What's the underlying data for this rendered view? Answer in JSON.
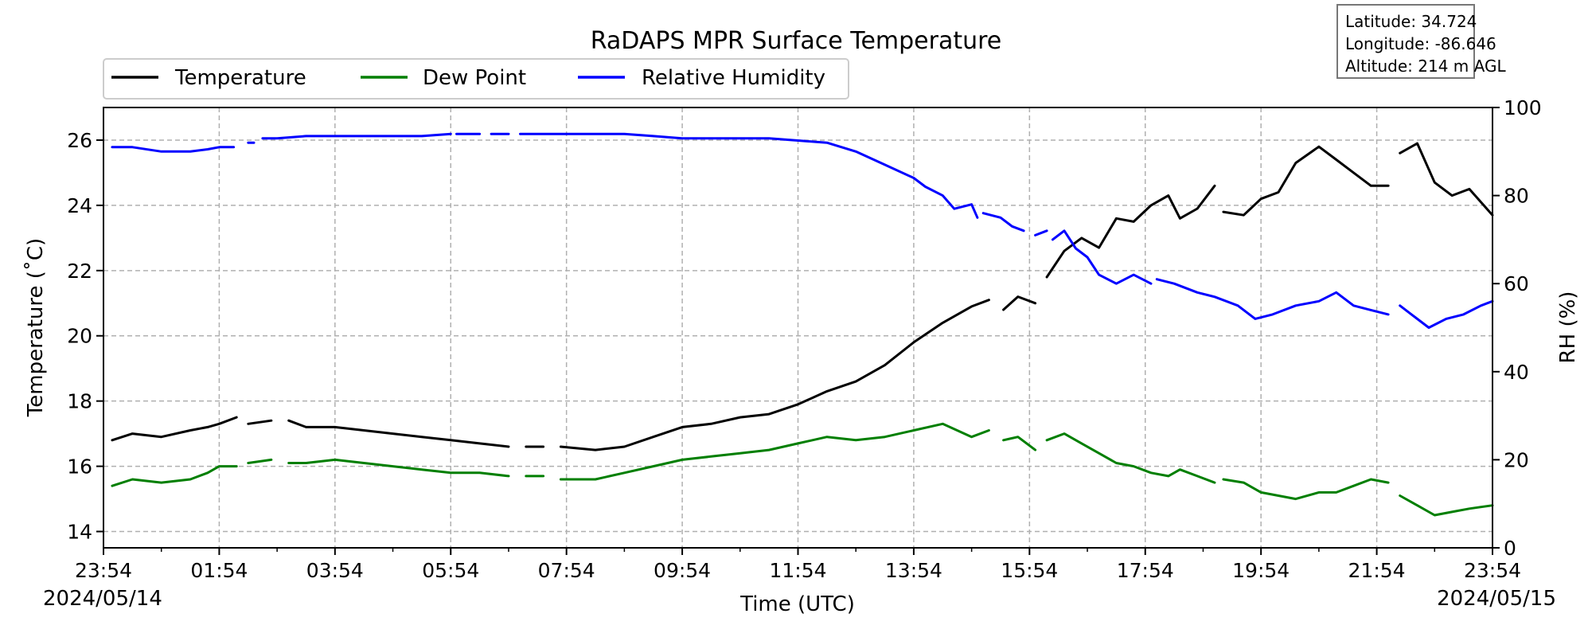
{
  "info_box": {
    "latitude": "Latitude: 34.724",
    "longitude": "Longitude: -86.646",
    "altitude": "Altitude: 214 m AGL"
  },
  "colors": {
    "temperature": "#000000",
    "dew_point": "#007f00",
    "relative_humidity": "#0000ff",
    "grid": "#b0b0b0"
  },
  "chart_data": {
    "type": "line",
    "title": "RaDAPS MPR Surface Temperature",
    "xlabel": "Time (UTC)",
    "ylabel": "Temperature ($^\\circ$C)",
    "ylabel_display": "Temperature (˚C)",
    "y2label": "RH (%)",
    "xlim": [
      0,
      24
    ],
    "ylim": [
      13.5,
      27
    ],
    "y2lim": [
      0,
      100
    ],
    "x_tick_labels": [
      "23:54",
      "01:54",
      "03:54",
      "05:54",
      "07:54",
      "09:54",
      "11:54",
      "13:54",
      "15:54",
      "17:54",
      "19:54",
      "21:54",
      "23:54"
    ],
    "y_ticks": [
      14,
      16,
      18,
      20,
      22,
      24,
      26
    ],
    "y2_ticks": [
      0,
      20,
      40,
      60,
      80,
      100
    ],
    "start_date": "2024/05/14",
    "end_date": "2024/05/15",
    "grid": true,
    "legend_position": "top-left",
    "x_units": "hours after 23:54 UTC 2024/05/14",
    "series": [
      {
        "name": "Temperature",
        "axis": "left",
        "color": "#000000",
        "x": [
          0.15,
          0.5,
          1.0,
          1.5,
          1.8,
          2.0,
          2.3,
          null,
          2.5,
          2.9,
          null,
          3.2,
          3.5,
          4.0,
          4.5,
          5.0,
          5.5,
          6.0,
          6.5,
          7.0,
          null,
          7.3,
          7.6,
          null,
          7.9,
          8.5,
          9.0,
          9.5,
          10.0,
          10.5,
          11.0,
          11.5,
          12.0,
          12.5,
          13.0,
          13.5,
          14.0,
          14.5,
          15.0,
          15.3,
          null,
          15.55,
          15.8,
          16.1,
          null,
          16.3,
          16.6,
          16.9,
          17.2,
          17.5,
          17.8,
          18.1,
          18.4,
          18.6,
          18.9,
          19.2,
          null,
          19.35,
          19.7,
          20.0,
          20.3,
          20.6,
          21.0,
          21.3,
          21.6,
          21.9,
          22.2,
          null,
          22.4,
          22.7,
          23.0,
          23.3,
          23.6,
          24.0
        ],
        "y": [
          16.8,
          17.0,
          16.9,
          17.1,
          17.2,
          17.3,
          17.5,
          null,
          17.3,
          17.4,
          null,
          17.4,
          17.2,
          17.2,
          17.1,
          17.0,
          16.9,
          16.8,
          16.7,
          16.6,
          null,
          16.6,
          16.6,
          null,
          16.6,
          16.5,
          16.6,
          16.9,
          17.2,
          17.3,
          17.5,
          17.6,
          17.9,
          18.3,
          18.6,
          19.1,
          19.8,
          20.4,
          20.9,
          21.1,
          null,
          20.8,
          21.2,
          21.0,
          null,
          21.8,
          22.6,
          23.0,
          22.7,
          23.6,
          23.5,
          24.0,
          24.3,
          23.6,
          23.9,
          24.6,
          null,
          23.8,
          23.7,
          24.2,
          24.4,
          25.3,
          25.8,
          25.4,
          25.0,
          24.6,
          24.6,
          null,
          25.6,
          25.9,
          24.7,
          24.3,
          24.5,
          23.7
        ]
      },
      {
        "name": "Dew Point",
        "axis": "left",
        "color": "#007f00",
        "x": [
          0.15,
          0.5,
          1.0,
          1.5,
          1.8,
          2.0,
          2.3,
          null,
          2.5,
          2.9,
          null,
          3.2,
          3.5,
          4.0,
          4.5,
          5.0,
          5.5,
          6.0,
          6.5,
          7.0,
          null,
          7.3,
          7.6,
          null,
          7.9,
          8.5,
          9.0,
          9.5,
          10.0,
          10.5,
          11.0,
          11.5,
          12.0,
          12.5,
          13.0,
          13.5,
          14.0,
          14.5,
          15.0,
          15.3,
          null,
          15.55,
          15.8,
          16.1,
          null,
          16.3,
          16.6,
          16.9,
          17.2,
          17.5,
          17.8,
          18.1,
          18.4,
          18.6,
          18.9,
          19.2,
          null,
          19.35,
          19.7,
          20.0,
          20.3,
          20.6,
          21.0,
          21.3,
          21.6,
          21.9,
          22.2,
          null,
          22.4,
          22.7,
          23.0,
          23.3,
          23.6,
          24.0
        ],
        "y": [
          15.4,
          15.6,
          15.5,
          15.6,
          15.8,
          16.0,
          16.0,
          null,
          16.1,
          16.2,
          null,
          16.1,
          16.1,
          16.2,
          16.1,
          16.0,
          15.9,
          15.8,
          15.8,
          15.7,
          null,
          15.7,
          15.7,
          null,
          15.6,
          15.6,
          15.8,
          16.0,
          16.2,
          16.3,
          16.4,
          16.5,
          16.7,
          16.9,
          16.8,
          16.9,
          17.1,
          17.3,
          16.9,
          17.1,
          null,
          16.8,
          16.9,
          16.5,
          null,
          16.8,
          17.0,
          16.7,
          16.4,
          16.1,
          16.0,
          15.8,
          15.7,
          15.9,
          15.7,
          15.5,
          null,
          15.6,
          15.5,
          15.2,
          15.1,
          15.0,
          15.2,
          15.2,
          15.4,
          15.6,
          15.5,
          null,
          15.1,
          14.8,
          14.5,
          14.6,
          14.7,
          14.8
        ]
      },
      {
        "name": "Relative Humidity",
        "axis": "right",
        "color": "#0000ff",
        "x": [
          0.15,
          0.5,
          1.0,
          1.5,
          1.8,
          2.0,
          2.25,
          null,
          2.5,
          2.6,
          null,
          2.75,
          3.0,
          3.5,
          4.0,
          4.5,
          5.0,
          5.5,
          6.0,
          null,
          6.1,
          6.5,
          null,
          6.7,
          7.0,
          null,
          7.2,
          7.5,
          8.0,
          8.5,
          9.0,
          9.5,
          10.0,
          10.5,
          11.0,
          11.5,
          12.0,
          12.5,
          13.0,
          13.5,
          14.0,
          14.2,
          14.5,
          14.7,
          15.0,
          15.1,
          null,
          15.2,
          15.5,
          15.7,
          15.9,
          null,
          16.1,
          16.3,
          null,
          16.4,
          16.6,
          16.8,
          17.0,
          17.2,
          17.5,
          17.8,
          18.1,
          null,
          18.2,
          18.5,
          18.9,
          19.2,
          19.6,
          19.9,
          20.2,
          20.6,
          21.0,
          21.3,
          21.6,
          21.9,
          22.2,
          null,
          22.4,
          22.6,
          22.9,
          23.2,
          23.5,
          23.8,
          24.0
        ],
        "y": [
          91.0,
          91.0,
          90.0,
          90.0,
          90.5,
          91.0,
          91.0,
          null,
          92.0,
          92.0,
          null,
          93.0,
          93.0,
          93.5,
          93.5,
          93.5,
          93.5,
          93.5,
          94.0,
          null,
          94.0,
          94.0,
          null,
          94.0,
          94.0,
          null,
          94.0,
          94.0,
          94.0,
          94.0,
          94.0,
          93.5,
          93.0,
          93.0,
          93.0,
          93.0,
          92.5,
          92.0,
          90.0,
          87.0,
          84.0,
          82.0,
          80.0,
          77.0,
          78.0,
          75.0,
          null,
          76.0,
          75.0,
          73.0,
          72.0,
          null,
          71.0,
          72.0,
          null,
          70.0,
          72.0,
          68.0,
          66.0,
          62.0,
          60.0,
          62.0,
          60.0,
          null,
          61.0,
          60.0,
          58.0,
          57.0,
          55.0,
          52.0,
          53.0,
          55.0,
          56.0,
          58.0,
          55.0,
          54.0,
          53.0,
          null,
          55.0,
          53.0,
          50.0,
          52.0,
          53.0,
          55.0,
          56.0
        ]
      }
    ]
  }
}
